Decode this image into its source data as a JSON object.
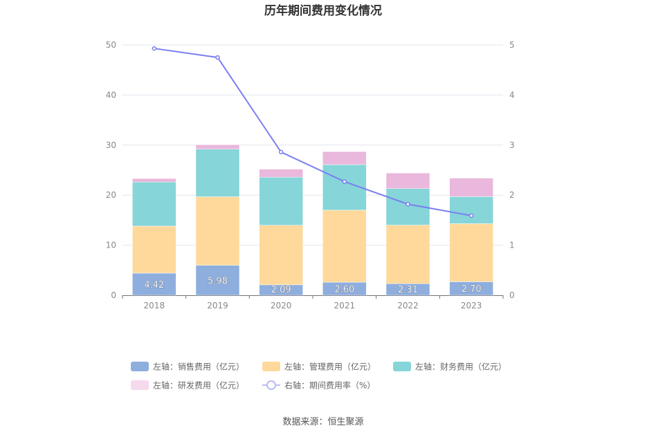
{
  "chart_data": {
    "type": "bar",
    "title": "历年期间费用变化情况",
    "categories": [
      "2018",
      "2019",
      "2020",
      "2021",
      "2022",
      "2023"
    ],
    "y_left": {
      "range": [
        0,
        50
      ],
      "ticks": [
        "0",
        "10",
        "20",
        "30",
        "40",
        "50"
      ]
    },
    "y_right": {
      "range": [
        0,
        5
      ],
      "ticks": [
        "0",
        "1",
        "2",
        "3",
        "4",
        "5"
      ]
    },
    "series": [
      {
        "name": "左轴：销售费用（亿元）",
        "type": "bar",
        "axis": "left",
        "color": "#8eaede",
        "values": [
          4.42,
          5.98,
          2.09,
          2.6,
          2.31,
          2.7
        ],
        "labels": [
          "4.42",
          "5.98",
          "2.09",
          "2.60",
          "2.31",
          "2.70"
        ]
      },
      {
        "name": "左轴：管理费用（亿元）",
        "type": "bar",
        "axis": "left",
        "color": "#fed99b",
        "values": [
          9.4,
          13.7,
          11.9,
          14.4,
          11.7,
          11.6
        ]
      },
      {
        "name": "左轴：财务费用（亿元）",
        "type": "bar",
        "axis": "left",
        "color": "#86d5d8",
        "values": [
          8.8,
          9.5,
          9.6,
          9.1,
          7.3,
          5.4
        ]
      },
      {
        "name": "左轴：研发费用（亿元）",
        "type": "bar",
        "axis": "left",
        "color": "#e9b8dc",
        "values": [
          0.7,
          0.9,
          1.6,
          2.6,
          3.1,
          3.7
        ]
      },
      {
        "name": "右轴：期间费用率（%）",
        "type": "line",
        "axis": "right",
        "color": "#7b7ff0",
        "values": [
          4.93,
          4.75,
          2.86,
          2.27,
          1.82,
          1.59
        ]
      }
    ],
    "grid": true,
    "legend_position": "bottom"
  },
  "source": "数据来源：恒生聚源"
}
